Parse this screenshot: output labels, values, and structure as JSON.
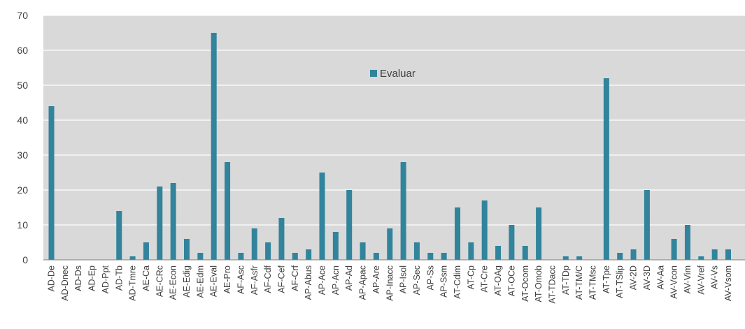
{
  "chart_data": {
    "type": "bar",
    "categories": [
      "AD-De",
      "AD-Dnec",
      "AD-Ds",
      "AD-Ep",
      "AD-Ppt",
      "AD-Tb",
      "AD-Tmre",
      "AE-Ca",
      "AE-CRc",
      "AE-Econ",
      "AE-Edig",
      "AE-Edm",
      "AE-Eval",
      "AE-Pro",
      "AF-Asc",
      "AF-Asfr",
      "AF-Cdf",
      "AF-Cef",
      "AF-Crf",
      "AP-Abus",
      "AP-Ace",
      "AP-Acn",
      "AP-Ad",
      "AP-Apac",
      "AP-Are",
      "AP-Inacc",
      "AP-Isol",
      "AP-Sec",
      "AP-Ss",
      "AP-Ssm",
      "AT-Cdim",
      "AT-Cp",
      "AT-Cre",
      "AT-OAg",
      "AT-OCe",
      "AT-Ocom",
      "AT-Omob",
      "AT-TDacc",
      "AT-TDp",
      "AT-TM/C",
      "AT-TMsc",
      "AT-Tpe",
      "AT-TSlip",
      "AV-2D",
      "AV-3D",
      "AV-Aa",
      "AV-Vcon",
      "AV-Vim",
      "AV-Vref",
      "AV-Vs",
      "AV-Vsom"
    ],
    "series": [
      {
        "name": "Evaluar",
        "values": [
          44,
          0,
          0,
          0,
          0,
          14,
          1,
          5,
          21,
          22,
          6,
          2,
          65,
          28,
          2,
          9,
          5,
          12,
          2,
          3,
          25,
          8,
          20,
          5,
          2,
          9,
          28,
          5,
          2,
          2,
          15,
          5,
          17,
          4,
          10,
          4,
          15,
          0,
          1,
          1,
          0,
          52,
          2,
          3,
          20,
          0,
          6,
          10,
          1,
          3,
          3
        ]
      }
    ],
    "colors": {
      "bar": "#31849b",
      "plot_bg": "#d9d9d9",
      "grid": "#ffffff"
    },
    "ylim": [
      0,
      70
    ],
    "yticks": [
      "0",
      "10",
      "20",
      "30",
      "40",
      "50",
      "60",
      "70"
    ],
    "grid": true,
    "legend_placement": "top-center",
    "xlabel": "",
    "ylabel": "",
    "title": ""
  }
}
